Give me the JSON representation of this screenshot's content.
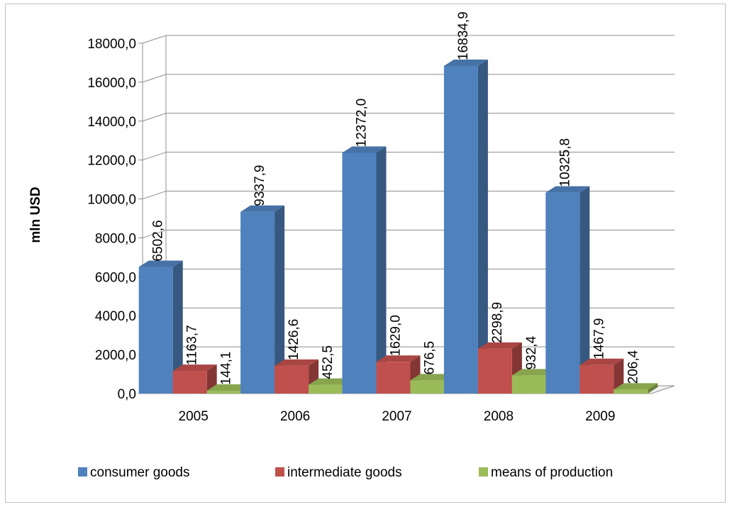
{
  "chart_data": {
    "type": "bar",
    "categories": [
      "2005",
      "2006",
      "2007",
      "2008",
      "2009"
    ],
    "series": [
      {
        "name": "consumer goods",
        "values": [
          6502.6,
          9337.9,
          12372.0,
          16834.9,
          10325.8
        ],
        "labels": [
          "6502,6",
          "9337,9",
          "12372,0",
          "16834,9",
          "10325,8"
        ],
        "color": "#4f81bd"
      },
      {
        "name": "intermediate goods",
        "values": [
          1163.7,
          1426.6,
          1629.0,
          2298.9,
          1467.9
        ],
        "labels": [
          "1163,7",
          "1426,6",
          "1629,0",
          "2298,9",
          "1467,9"
        ],
        "color": "#c0504d"
      },
      {
        "name": "means of production",
        "values": [
          144.1,
          452.5,
          676.5,
          932.4,
          206.4
        ],
        "labels": [
          "144,1",
          "452,5",
          "676,5",
          "932,4",
          "206,4"
        ],
        "color": "#9bbb59"
      }
    ],
    "y_ticks": [
      "0,0",
      "2000,0",
      "4000,0",
      "6000,0",
      "8000,0",
      "10000,0",
      "12000,0",
      "14000,0",
      "16000,0",
      "18000,0"
    ],
    "ylabel": "mln USD",
    "ylim": [
      0,
      18000
    ],
    "grid": true,
    "legend_position": "bottom",
    "style": "3d-clustered-column"
  }
}
